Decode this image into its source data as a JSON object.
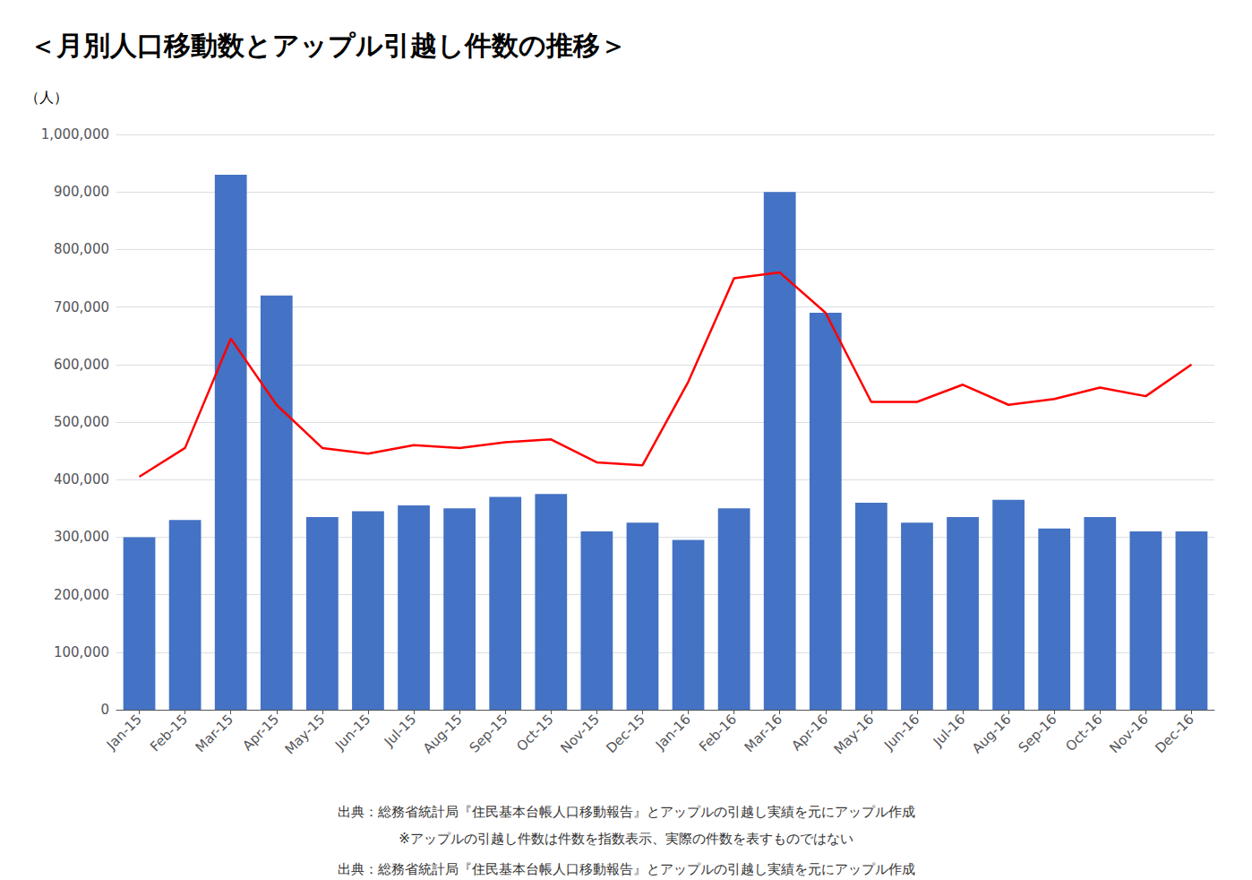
{
  "chart_data": {
    "type": "bar",
    "title": "＜月別人口移動数とアップル引越し件数の推移＞",
    "ylabel": "（人）",
    "annotations": [
      "出典：総務省統計局『住民基本台帳人口移動報告』とアップルの引越し実績を元にアップル作成",
      "※アップルの引越し件数は件数を指数表示、実際の件数を表すものではない",
      "出典：総務省統計局『住民基本台帳人口移動報告』とアップルの引越し実績を元にアップル作成"
    ],
    "categories": [
      "Jan-15",
      "Feb-15",
      "Mar-15",
      "Apr-15",
      "May-15",
      "Jun-15",
      "Jul-15",
      "Aug-15",
      "Sep-15",
      "Oct-15",
      "Nov-15",
      "Dec-15",
      "Jan-16",
      "Feb-16",
      "Mar-16",
      "Apr-16",
      "May-16",
      "Jun-16",
      "Jul-16",
      "Aug-16",
      "Sep-16",
      "Oct-16",
      "Nov-16",
      "Dec-16"
    ],
    "series": [
      {
        "type": "bar",
        "color": "#4472C4",
        "values": [
          300000,
          330000,
          930000,
          720000,
          335000,
          345000,
          355000,
          350000,
          370000,
          375000,
          310000,
          325000,
          295000,
          350000,
          900000,
          690000,
          360000,
          325000,
          335000,
          365000,
          315000,
          335000,
          310000,
          310000
        ]
      },
      {
        "type": "line",
        "color": "#FF0000",
        "values": [
          405000,
          455000,
          645000,
          530000,
          455000,
          445000,
          460000,
          455000,
          465000,
          470000,
          430000,
          425000,
          570000,
          750000,
          760000,
          690000,
          535000,
          535000,
          565000,
          530000,
          540000,
          560000,
          545000,
          600000
        ]
      }
    ],
    "ylim": [
      0,
      1000000
    ],
    "yticks": [
      0,
      {
        "value": 100000,
        "label": "100,000"
      },
      {
        "value": 200000,
        "label": "200,000"
      },
      {
        "value": 300000,
        "label": "300,000"
      },
      {
        "value": 400000,
        "label": "400,000"
      },
      {
        "value": 500000,
        "label": "500,000"
      },
      {
        "value": 600000,
        "label": "600,000"
      },
      {
        "value": 700000,
        "label": "700,000"
      },
      {
        "value": 800000,
        "label": "800,000"
      },
      {
        "value": 900000,
        "label": "900,000"
      },
      {
        "value": 1000000,
        "label": "1,000,000"
      }
    ],
    "grid": true
  }
}
